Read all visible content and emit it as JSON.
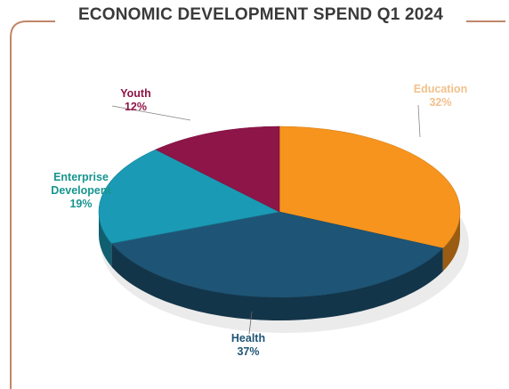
{
  "title": "ECONOMIC DEVELOPMENT SPEND Q1 2024",
  "chart_data": {
    "type": "pie",
    "title": "ECONOMIC DEVELOPMENT SPEND Q1 2024",
    "series": [
      {
        "name": "Education",
        "value": 32,
        "label": "32%",
        "color": "#F7941D"
      },
      {
        "name": "Health",
        "value": 37,
        "label": "37%",
        "color": "#1E5576"
      },
      {
        "name": "Enterprise Developent",
        "value": 19,
        "label": "19%",
        "color": "#1A9AB5"
      },
      {
        "name": "Youth",
        "value": 12,
        "label": "12%",
        "color": "#8E1548"
      }
    ],
    "label_colors": {
      "Education": "#F2C08A",
      "Health": "#1E5576",
      "Enterprise Developent": "#17958F",
      "Youth": "#8E1548"
    },
    "style": "3d",
    "legend": "none"
  },
  "labels": {
    "education": {
      "name": "Education",
      "pct": "32%"
    },
    "health": {
      "name": "Health",
      "pct": "37%"
    },
    "enterprise": {
      "name_line1": "Enterprise",
      "name_line2": "Developent",
      "pct": "19%"
    },
    "youth": {
      "name": "Youth",
      "pct": "12%"
    }
  },
  "frame_color": "#C0876A"
}
